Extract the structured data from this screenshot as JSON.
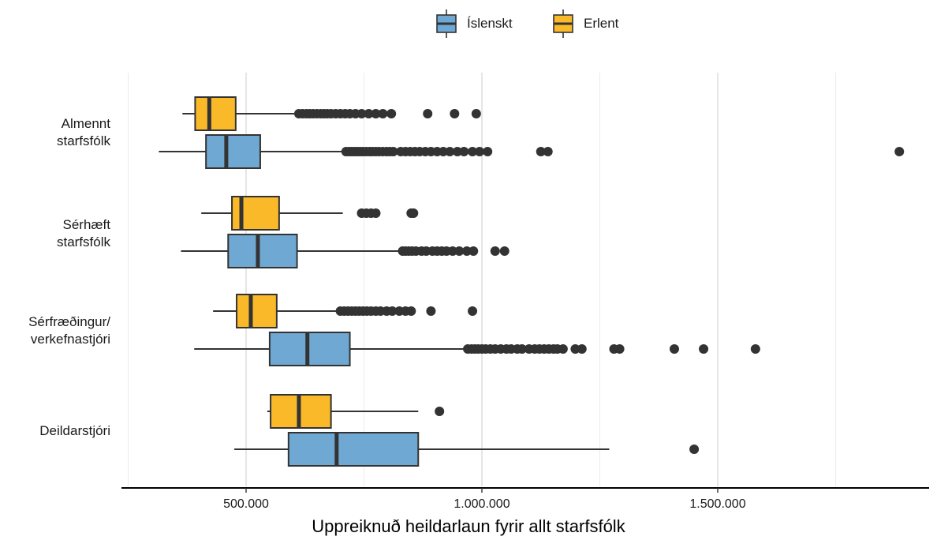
{
  "legend": {
    "items": [
      {
        "label": "Íslenskt",
        "color": "#6fa8d2"
      },
      {
        "label": "Erlent",
        "color": "#f9b929"
      }
    ]
  },
  "chart_data": {
    "type": "boxplot",
    "orientation": "horizontal",
    "xlabel": "Uppreiknuð heildarlaun fyrir allt starfsfólk",
    "xlim": [
      250000,
      1950000
    ],
    "x_ticks": [
      500000,
      1000000,
      1500000
    ],
    "x_tick_labels": [
      "500.000",
      "1.000.000",
      "1.500.000"
    ],
    "x_minor_gridlines": [
      250000,
      750000,
      1250000,
      1750000
    ],
    "categories": [
      {
        "label": "Almennt\nstarfsfólk",
        "key": "almennt"
      },
      {
        "label": "Sérhæft\nstarfsfólk",
        "key": "serhaeft"
      },
      {
        "label": "Sérfræðingur/\nverkefnastjóri",
        "key": "serfraedingur"
      },
      {
        "label": "Deildarstjóri",
        "key": "deildarstjori"
      }
    ],
    "series": [
      {
        "name": "Íslenskt",
        "color": "#6fa8d2",
        "boxes": [
          {
            "whisker_low": 315000,
            "q1": 415000,
            "median": 458000,
            "q3": 530000,
            "whisker_high": 710000,
            "outliers": [
              712000,
              718000,
              724000,
              730000,
              736000,
              742000,
              748000,
              755000,
              762000,
              768000,
              775000,
              782000,
              790000,
              798000,
              805000,
              812000,
              828000,
              838000,
              848000,
              858000,
              868000,
              880000,
              892000,
              905000,
              918000,
              932000,
              948000,
              962000,
              980000,
              995000,
              1012000,
              1125000,
              1140000,
              1885000
            ]
          },
          {
            "whisker_low": 362000,
            "q1": 462000,
            "median": 525000,
            "q3": 608000,
            "whisker_high": 830000,
            "outliers": [
              832000,
              838000,
              845000,
              852000,
              860000,
              872000,
              882000,
              895000,
              905000,
              915000,
              925000,
              938000,
              952000,
              968000,
              982000,
              1028000,
              1048000
            ]
          },
          {
            "whisker_low": 390000,
            "q1": 550000,
            "median": 630000,
            "q3": 720000,
            "whisker_high": 968000,
            "outliers": [
              970000,
              978000,
              985000,
              992000,
              1000000,
              1008000,
              1018000,
              1028000,
              1040000,
              1052000,
              1062000,
              1075000,
              1085000,
              1100000,
              1112000,
              1122000,
              1132000,
              1142000,
              1152000,
              1160000,
              1172000,
              1198000,
              1212000,
              1280000,
              1292000,
              1408000,
              1470000,
              1580000
            ]
          },
          {
            "whisker_low": 475000,
            "q1": 590000,
            "median": 692000,
            "q3": 865000,
            "whisker_high": 1270000,
            "outliers": [
              1450000
            ]
          }
        ]
      },
      {
        "name": "Erlent",
        "color": "#f9b929",
        "boxes": [
          {
            "whisker_low": 365000,
            "q1": 392000,
            "median": 422000,
            "q3": 478000,
            "whisker_high": 612000,
            "outliers": [
              612000,
              620000,
              628000,
              635000,
              642000,
              650000,
              658000,
              665000,
              672000,
              680000,
              690000,
              700000,
              710000,
              720000,
              732000,
              745000,
              760000,
              775000,
              790000,
              808000,
              885000,
              942000,
              988000
            ]
          },
          {
            "whisker_low": 405000,
            "q1": 470000,
            "median": 490000,
            "q3": 570000,
            "whisker_high": 705000,
            "outliers": [
              745000,
              755000,
              765000,
              775000,
              850000,
              855000
            ]
          },
          {
            "whisker_low": 430000,
            "q1": 480000,
            "median": 510000,
            "q3": 565000,
            "whisker_high": 695000,
            "outliers": [
              700000,
              708000,
              716000,
              724000,
              732000,
              740000,
              748000,
              756000,
              765000,
              775000,
              785000,
              798000,
              810000,
              825000,
              838000,
              850000,
              892000,
              980000
            ]
          },
          {
            "whisker_low": 545000,
            "q1": 552000,
            "median": 612000,
            "q3": 680000,
            "whisker_high": 865000,
            "outliers": [
              910000
            ]
          }
        ]
      }
    ]
  }
}
